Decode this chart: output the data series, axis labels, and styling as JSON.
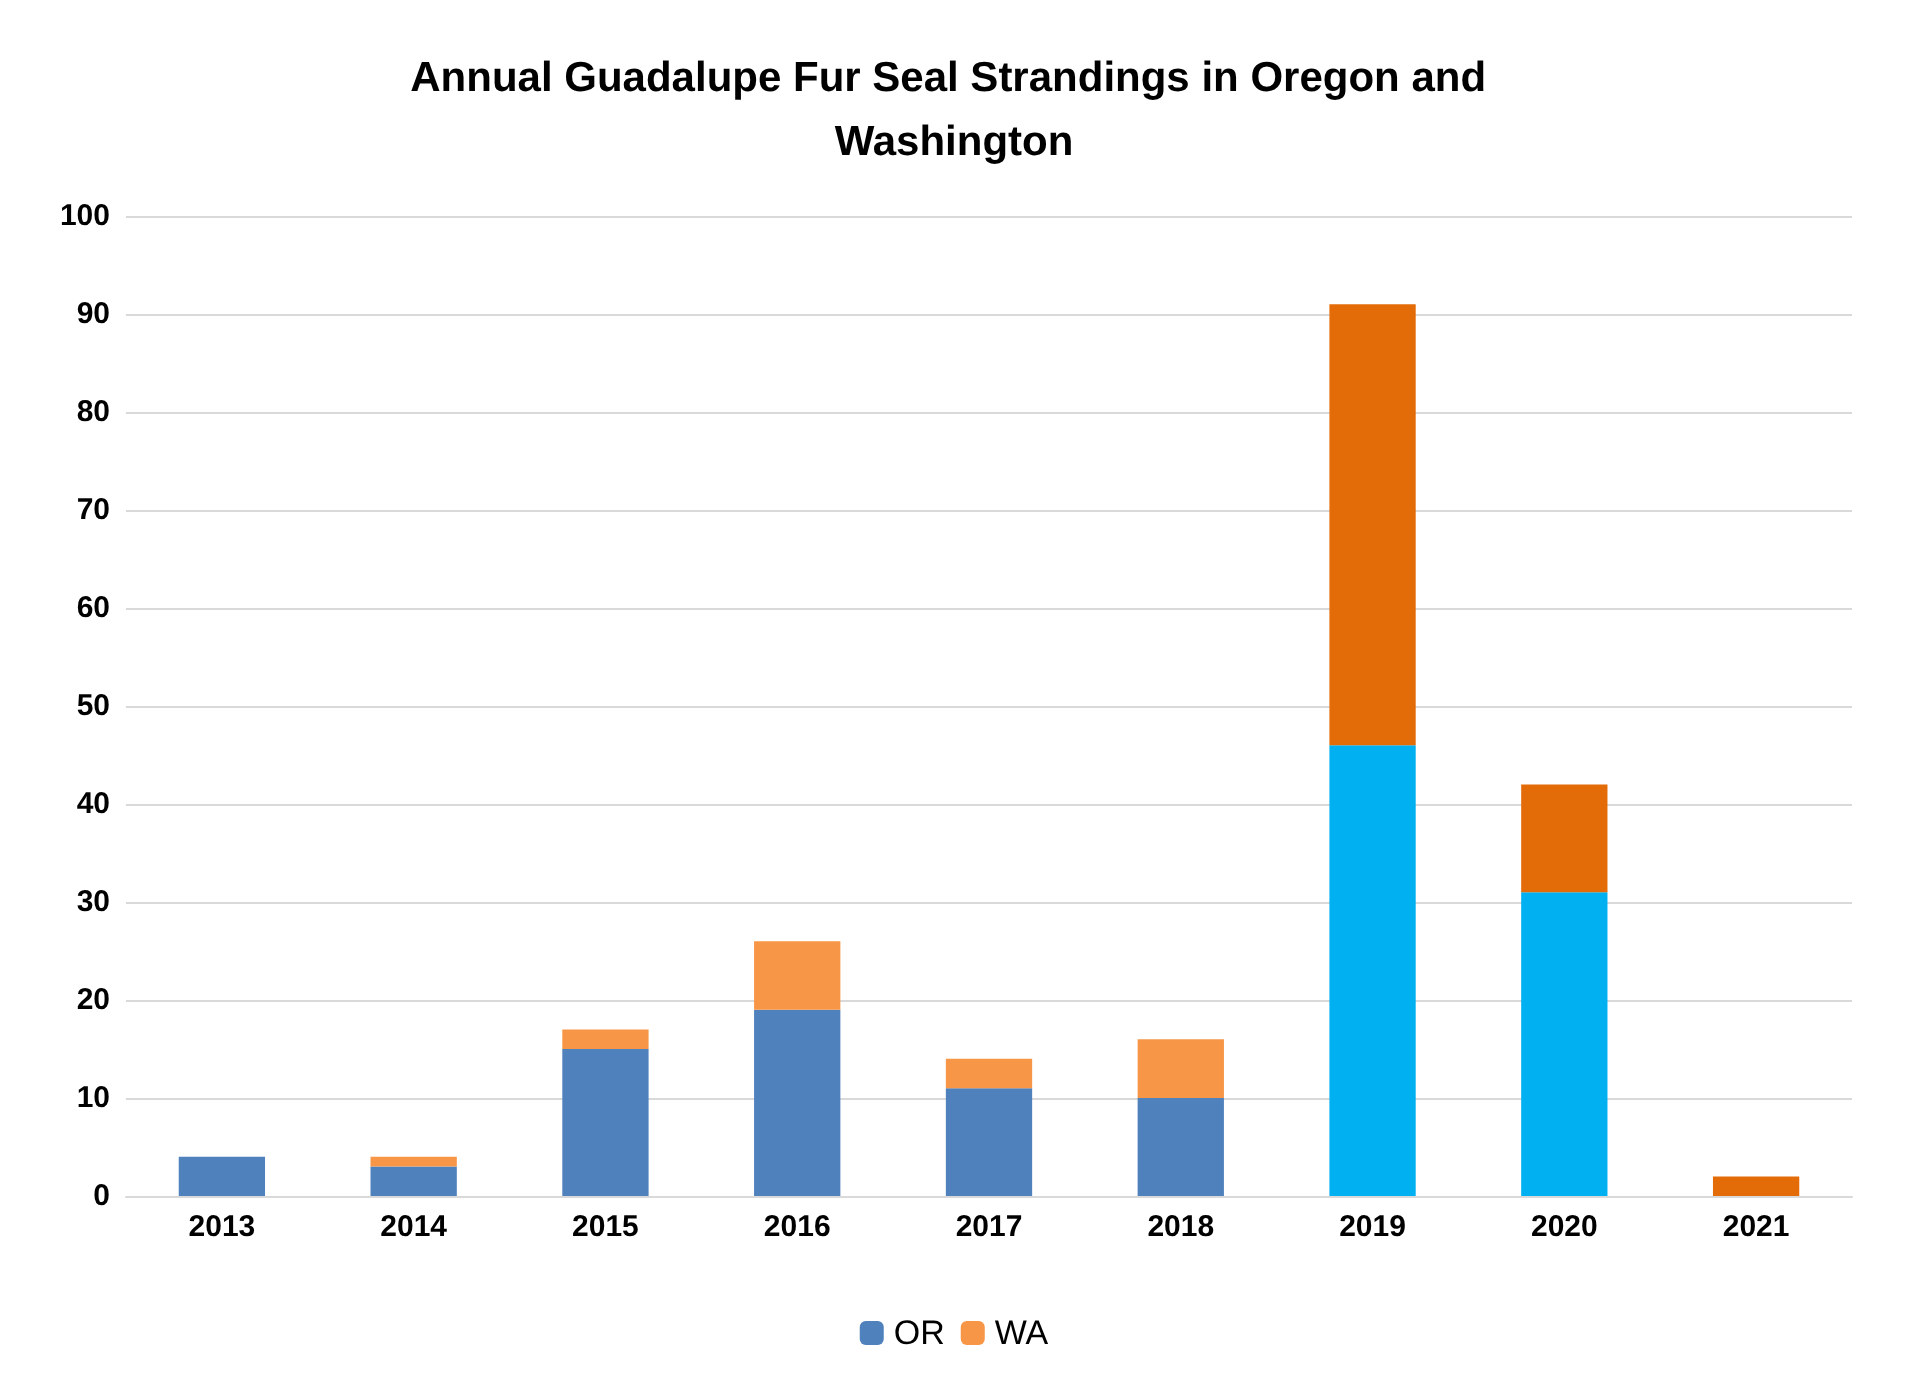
{
  "chart_data": {
    "type": "bar",
    "title": "Annual Guadalupe Fur Seal Strandings in Oregon and Washington",
    "categories": [
      "2013",
      "2014",
      "2015",
      "2016",
      "2017",
      "2018",
      "2019",
      "2020",
      "2021"
    ],
    "stacked": true,
    "ylim": [
      0,
      100
    ],
    "yticks": [
      0,
      10,
      20,
      30,
      40,
      50,
      60,
      70,
      80,
      90,
      100
    ],
    "grid": "y",
    "legend": "bottom",
    "series": [
      {
        "name": "OR",
        "color": "#4f81bd",
        "colors": [
          "#4f81bd",
          "#4f81bd",
          "#4f81bd",
          "#4f81bd",
          "#4f81bd",
          "#4f81bd",
          "#00b0f0",
          "#00b0f0",
          "#4f81bd"
        ],
        "values": [
          4,
          3,
          15,
          19,
          11,
          10,
          46,
          31,
          0
        ]
      },
      {
        "name": "WA",
        "color": "#f79646",
        "colors": [
          "#f79646",
          "#f79646",
          "#f79646",
          "#f79646",
          "#f79646",
          "#f79646",
          "#e36c09",
          "#e36c09",
          "#e36c09"
        ],
        "values": [
          0,
          1,
          2,
          7,
          3,
          6,
          45,
          11,
          2
        ]
      }
    ]
  }
}
